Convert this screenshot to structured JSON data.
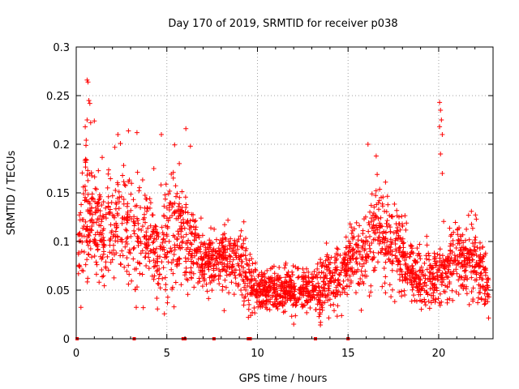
{
  "chart_data": {
    "type": "scatter",
    "title": "Day 170 of 2019, SRMTID for receiver p038",
    "xlabel": "GPS time / hours",
    "ylabel": "SRMTID / TECUs",
    "xlim": [
      0,
      23
    ],
    "ylim": [
      0,
      0.3
    ],
    "grid": true,
    "marker": "plus",
    "color": "#ff0000",
    "x_ticks": [
      0,
      5,
      10,
      15,
      20
    ],
    "x_tick_labels": [
      "0",
      "5",
      "10",
      "15",
      "20"
    ],
    "y_ticks": [
      0,
      0.05,
      0.1,
      0.15,
      0.2,
      0.25,
      0.3
    ],
    "y_tick_labels": [
      "0",
      "0.05",
      "0.1",
      "0.15",
      "0.2",
      "0.25",
      "0.3"
    ],
    "density_profile": {
      "x": [
        0.1,
        0.5,
        1.0,
        1.5,
        2.0,
        2.5,
        3.0,
        3.5,
        4.0,
        4.5,
        5.0,
        5.5,
        6.0,
        6.5,
        7.0,
        7.5,
        8.0,
        8.5,
        9.0,
        9.5,
        10.0,
        10.5,
        11.0,
        11.5,
        12.0,
        12.5,
        13.0,
        13.5,
        14.0,
        14.5,
        15.0,
        15.5,
        16.0,
        16.5,
        17.0,
        17.5,
        18.0,
        18.5,
        19.0,
        19.5,
        20.0,
        20.5,
        21.0,
        21.5,
        22.0,
        22.5,
        22.8
      ],
      "center": [
        0.09,
        0.13,
        0.12,
        0.11,
        0.12,
        0.13,
        0.11,
        0.1,
        0.1,
        0.09,
        0.11,
        0.11,
        0.1,
        0.09,
        0.08,
        0.08,
        0.08,
        0.08,
        0.08,
        0.06,
        0.05,
        0.05,
        0.05,
        0.05,
        0.05,
        0.05,
        0.05,
        0.05,
        0.06,
        0.06,
        0.08,
        0.08,
        0.09,
        0.11,
        0.11,
        0.1,
        0.08,
        0.07,
        0.06,
        0.06,
        0.06,
        0.08,
        0.08,
        0.08,
        0.08,
        0.06,
        0.05
      ],
      "spread": [
        0.03,
        0.05,
        0.04,
        0.04,
        0.04,
        0.04,
        0.04,
        0.04,
        0.03,
        0.03,
        0.04,
        0.04,
        0.03,
        0.03,
        0.02,
        0.02,
        0.02,
        0.02,
        0.02,
        0.02,
        0.015,
        0.015,
        0.015,
        0.015,
        0.015,
        0.015,
        0.015,
        0.02,
        0.02,
        0.02,
        0.02,
        0.025,
        0.03,
        0.035,
        0.035,
        0.03,
        0.025,
        0.02,
        0.02,
        0.02,
        0.02,
        0.025,
        0.025,
        0.025,
        0.025,
        0.02,
        0.015
      ]
    },
    "outliers": [
      {
        "x": 0.6,
        "y": 0.266
      },
      {
        "x": 0.65,
        "y": 0.264
      },
      {
        "x": 0.7,
        "y": 0.245
      },
      {
        "x": 0.75,
        "y": 0.242
      },
      {
        "x": 0.6,
        "y": 0.225
      },
      {
        "x": 1.0,
        "y": 0.224
      },
      {
        "x": 2.3,
        "y": 0.21
      },
      {
        "x": 3.35,
        "y": 0.212
      },
      {
        "x": 4.7,
        "y": 0.21
      },
      {
        "x": 6.05,
        "y": 0.216
      },
      {
        "x": 6.3,
        "y": 0.198
      },
      {
        "x": 16.1,
        "y": 0.2
      },
      {
        "x": 20.05,
        "y": 0.243
      },
      {
        "x": 20.1,
        "y": 0.235
      },
      {
        "x": 20.15,
        "y": 0.225
      },
      {
        "x": 20.05,
        "y": 0.218
      },
      {
        "x": 20.2,
        "y": 0.21
      },
      {
        "x": 20.1,
        "y": 0.19
      },
      {
        "x": 20.2,
        "y": 0.17
      },
      {
        "x": 12.0,
        "y": 0.015
      },
      {
        "x": 9.5,
        "y": 0.022
      },
      {
        "x": 3.7,
        "y": 0.032
      }
    ],
    "zero_markers_x": [
      0.05,
      3.2,
      5.9,
      6.0,
      7.6,
      9.5,
      9.6,
      13.2,
      15.0
    ]
  }
}
